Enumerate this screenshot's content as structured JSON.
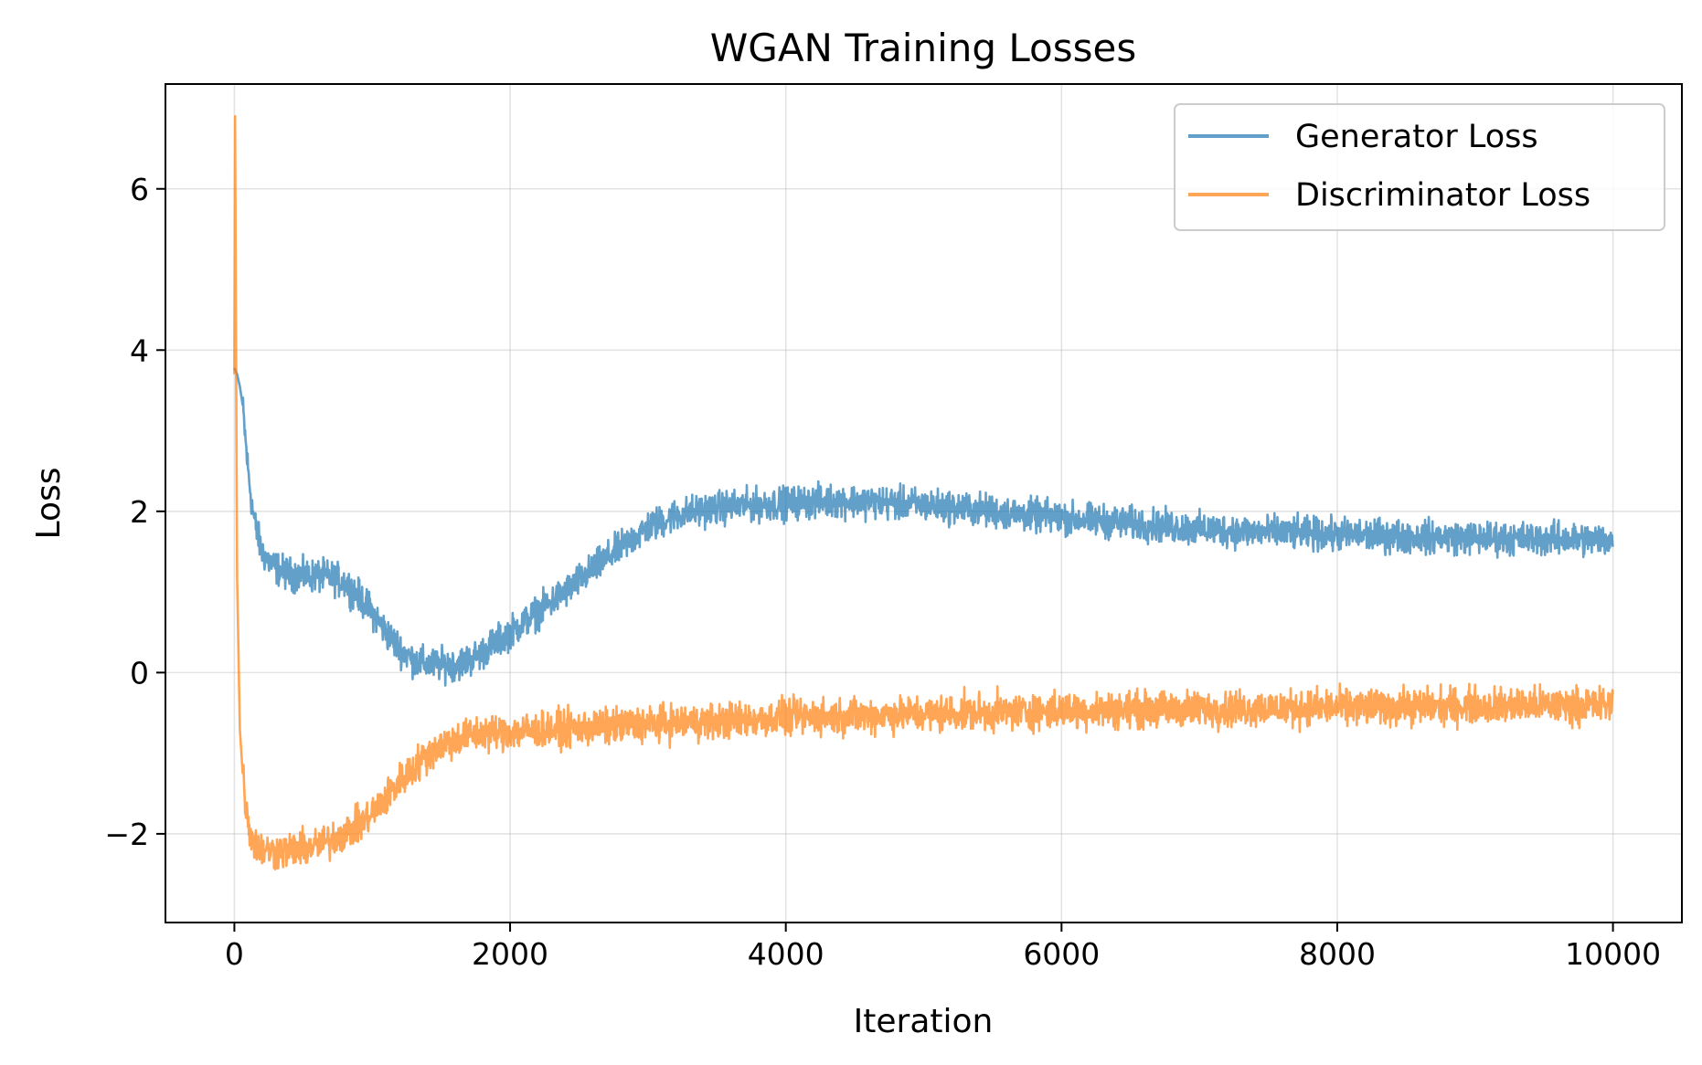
{
  "chart_data": {
    "type": "line",
    "title": "WGAN Training Losses",
    "xlabel": "Iteration",
    "ylabel": "Loss",
    "xlim": [
      -500,
      10500
    ],
    "ylim": [
      -3.1,
      7.3
    ],
    "xticks": [
      0,
      2000,
      4000,
      6000,
      8000,
      10000
    ],
    "xtick_labels": [
      "0",
      "2000",
      "4000",
      "6000",
      "8000",
      "10000"
    ],
    "yticks": [
      -2,
      0,
      2,
      4,
      6
    ],
    "ytick_labels": [
      "−2",
      "0",
      "2",
      "4",
      "6"
    ],
    "grid": true,
    "legend_position": "top-right",
    "series": [
      {
        "name": "Generator Loss",
        "color": "#1f77b4",
        "noise": 0.1,
        "x": [
          0,
          20,
          40,
          60,
          80,
          100,
          130,
          160,
          200,
          250,
          300,
          400,
          500,
          600,
          700,
          800,
          900,
          1000,
          1100,
          1200,
          1300,
          1400,
          1500,
          1600,
          1700,
          1800,
          1900,
          2000,
          2200,
          2400,
          2600,
          2800,
          3000,
          3200,
          3400,
          3600,
          3800,
          4000,
          4200,
          4400,
          4600,
          4800,
          5000,
          5200,
          5400,
          5600,
          5800,
          6000,
          6500,
          7000,
          7500,
          8000,
          8500,
          9000,
          9500,
          10000
        ],
        "y": [
          3.78,
          3.7,
          3.55,
          3.3,
          2.9,
          2.5,
          2.05,
          1.75,
          1.5,
          1.38,
          1.3,
          1.22,
          1.2,
          1.2,
          1.18,
          1.12,
          0.95,
          0.75,
          0.5,
          0.3,
          0.15,
          0.1,
          0.1,
          0.1,
          0.15,
          0.25,
          0.38,
          0.5,
          0.75,
          1.0,
          1.28,
          1.55,
          1.8,
          1.95,
          2.02,
          2.06,
          2.08,
          2.1,
          2.12,
          2.13,
          2.12,
          2.1,
          2.08,
          2.05,
          2.02,
          1.98,
          1.95,
          1.92,
          1.85,
          1.78,
          1.74,
          1.71,
          1.69,
          1.67,
          1.66,
          1.65
        ]
      },
      {
        "name": "Discriminator Loss",
        "color": "#ff7f0e",
        "noise": 0.11,
        "x": [
          0,
          5,
          10,
          20,
          40,
          60,
          80,
          100,
          130,
          160,
          200,
          300,
          400,
          500,
          600,
          700,
          800,
          900,
          1000,
          1100,
          1200,
          1300,
          1400,
          1500,
          1600,
          1700,
          1800,
          2000,
          2500,
          3000,
          3500,
          4000,
          4500,
          5000,
          5500,
          6000,
          6500,
          7000,
          7500,
          8000,
          8500,
          9000,
          9500,
          10000
        ],
        "y": [
          3.7,
          6.9,
          5.0,
          1.2,
          -0.7,
          -1.2,
          -1.6,
          -1.85,
          -2.05,
          -2.15,
          -2.2,
          -2.22,
          -2.2,
          -2.18,
          -2.15,
          -2.08,
          -1.98,
          -1.9,
          -1.75,
          -1.55,
          -1.35,
          -1.18,
          -1.02,
          -0.9,
          -0.83,
          -0.78,
          -0.75,
          -0.73,
          -0.69,
          -0.64,
          -0.6,
          -0.56,
          -0.53,
          -0.51,
          -0.49,
          -0.47,
          -0.46,
          -0.45,
          -0.44,
          -0.43,
          -0.42,
          -0.41,
          -0.41,
          -0.4
        ]
      }
    ]
  }
}
